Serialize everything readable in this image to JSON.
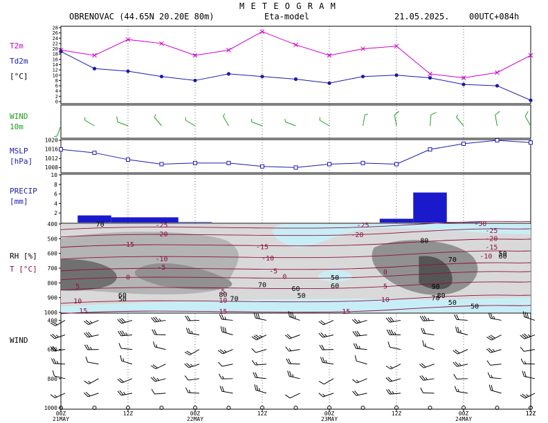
{
  "header": {
    "title": "M E T E O G R A M",
    "station": "OBRENOVAC (44.65N 20.20E  80m)",
    "model": "Eta-model",
    "date": "21.05.2025.",
    "run": "00UTC+084h"
  },
  "panel_labels": {
    "t2m": "T2m",
    "td2m": "Td2m",
    "temp_unit": "[°C]",
    "wind": "WIND",
    "wind_level": "10m",
    "mslp": "MSLP",
    "mslp_unit": "[hPa]",
    "precip": "PRECIP",
    "precip_unit": "[mm]",
    "rh": "RH [%]",
    "t": "T [°C]",
    "upper_wind": "WIND"
  },
  "colors": {
    "t2m": "#cc00cc",
    "td2m": "#1a1aaa",
    "wind10m": "#1aa01a",
    "mslp": "#1a1aaa",
    "precip": "#1a1acc",
    "t_isotherm": "#8b1040",
    "rh_band_1": "#c8eef5",
    "rh_band_2": "#d9d9d9",
    "rh_band_3": "#b4b4b4",
    "rh_band_4": "#919191",
    "rh_band_5": "#707070",
    "rh_band_6": "#555555"
  },
  "chart_data": {
    "type": "meteogram",
    "x": [
      "00Z",
      "06Z",
      "12Z",
      "18Z",
      "00Z",
      "06Z",
      "12Z",
      "18Z",
      "00Z",
      "06Z",
      "12Z",
      "18Z",
      "00Z",
      "06Z",
      "12Z"
    ],
    "hours": [
      0,
      6,
      12,
      18,
      24,
      30,
      36,
      42,
      48,
      54,
      60,
      66,
      72,
      78,
      84
    ],
    "x_ticks": [
      {
        "time": "00Z",
        "date": "21MAY"
      },
      {
        "time": "12Z",
        "date": ""
      },
      {
        "time": "00Z",
        "date": "22MAY"
      },
      {
        "time": "12Z",
        "date": ""
      },
      {
        "time": "00Z",
        "date": "23MAY"
      },
      {
        "time": "12Z",
        "date": ""
      },
      {
        "time": "00Z",
        "date": "24MAY"
      },
      {
        "time": "12Z",
        "date": ""
      }
    ],
    "temperature": {
      "ylim": [
        0,
        28
      ],
      "y_ticks": [
        "0",
        "2",
        "4",
        "6",
        "8",
        "10",
        "12",
        "14",
        "16",
        "18",
        "20",
        "22",
        "24",
        "26",
        "28"
      ],
      "series": [
        {
          "name": "T2m",
          "values": [
            19.5,
            17.5,
            23.5,
            22,
            17.5,
            19.5,
            26.5,
            21.5,
            17.5,
            20,
            21,
            10.5,
            9,
            11,
            17.5
          ]
        },
        {
          "name": "Td2m",
          "values": [
            19,
            12.5,
            11.5,
            9.5,
            8,
            10.5,
            9.5,
            8.5,
            7,
            9.5,
            10,
            9,
            6.5,
            6,
            0.5
          ]
        }
      ]
    },
    "wind10m": [
      {
        "dir": 200,
        "speed": 5
      },
      {
        "dir": 300,
        "speed": 5
      },
      {
        "dir": 290,
        "speed": 8
      },
      {
        "dir": 320,
        "speed": 5
      },
      {
        "dir": 300,
        "speed": 5
      },
      {
        "dir": 330,
        "speed": 5
      },
      {
        "dir": 290,
        "speed": 5
      },
      {
        "dir": 290,
        "speed": 5
      },
      {
        "dir": 300,
        "speed": 5
      },
      {
        "dir": 10,
        "speed": 5
      },
      {
        "dir": 350,
        "speed": 8
      },
      {
        "dir": 5,
        "speed": 8
      },
      {
        "dir": 320,
        "speed": 5
      },
      {
        "dir": 350,
        "speed": 10
      },
      {
        "dir": 330,
        "speed": 8
      }
    ],
    "mslp": {
      "ylim": [
        1006,
        1020
      ],
      "y_ticks": [
        "1008",
        "1012",
        "1016",
        "1020"
      ],
      "values": [
        1016,
        1014.5,
        1011.5,
        1009.5,
        1010,
        1010,
        1008.5,
        1008,
        1009.5,
        1010,
        1009.5,
        1016,
        1018.5,
        1020,
        1019
      ]
    },
    "precip": {
      "ylim": [
        0,
        10
      ],
      "y_ticks": [
        "2",
        "4",
        "6",
        "8",
        "10"
      ],
      "intervals": [
        {
          "from_hour": 3,
          "to_hour": 9,
          "value": 1.5
        },
        {
          "from_hour": 9,
          "to_hour": 21,
          "value": 1.1
        },
        {
          "from_hour": 21,
          "to_hour": 27,
          "value": 0.1
        },
        {
          "from_hour": 57,
          "to_hour": 63,
          "value": 0.8
        },
        {
          "from_hour": 63,
          "to_hour": 69,
          "value": 6.3
        },
        {
          "from_hour": 69,
          "to_hour": 75,
          "value": 0.1
        }
      ]
    },
    "cross_section": {
      "pressure_ticks": [
        "400",
        "500",
        "600",
        "700",
        "800",
        "900",
        "1000"
      ],
      "rh_labels": [
        {
          "text": "70",
          "hour": 7,
          "p": 405
        },
        {
          "text": "80",
          "hour": 65,
          "p": 515
        },
        {
          "text": "70",
          "hour": 70,
          "p": 643
        },
        {
          "text": "50",
          "hour": 79,
          "p": 603
        },
        {
          "text": "60",
          "hour": 79,
          "p": 621
        },
        {
          "text": "70",
          "hour": 36,
          "p": 815
        },
        {
          "text": "60",
          "hour": 42,
          "p": 840
        },
        {
          "text": "50",
          "hour": 49,
          "p": 765
        },
        {
          "text": "60",
          "hour": 49,
          "p": 822
        },
        {
          "text": "50",
          "hour": 43,
          "p": 888
        },
        {
          "text": "90",
          "hour": 67,
          "p": 827
        },
        {
          "text": "80",
          "hour": 68,
          "p": 888
        },
        {
          "text": "70",
          "hour": 67,
          "p": 905
        },
        {
          "text": "60",
          "hour": 11,
          "p": 885
        },
        {
          "text": "50",
          "hour": 11,
          "p": 911
        },
        {
          "text": "80",
          "hour": 29,
          "p": 880
        },
        {
          "text": "70",
          "hour": 31,
          "p": 908
        },
        {
          "text": "50",
          "hour": 70,
          "p": 935
        },
        {
          "text": "50",
          "hour": 74,
          "p": 960
        }
      ],
      "t_labels": [
        {
          "text": "-25",
          "hour": 18,
          "p": 410
        },
        {
          "text": "-20",
          "hour": 18,
          "p": 470
        },
        {
          "text": "-15",
          "hour": 12,
          "p": 540
        },
        {
          "text": "-10",
          "hour": 18,
          "p": 640
        },
        {
          "text": "-5",
          "hour": 18,
          "p": 695
        },
        {
          "text": "0",
          "hour": 12,
          "p": 763
        },
        {
          "text": "5",
          "hour": 3,
          "p": 825
        },
        {
          "text": "10",
          "hour": 3,
          "p": 925
        },
        {
          "text": "15",
          "hour": 4,
          "p": 990
        },
        {
          "text": "-15",
          "hour": 36,
          "p": 558
        },
        {
          "text": "-10",
          "hour": 37,
          "p": 635
        },
        {
          "text": "-5",
          "hour": 38,
          "p": 722
        },
        {
          "text": "0",
          "hour": 40,
          "p": 758
        },
        {
          "text": "5",
          "hour": 29,
          "p": 860
        },
        {
          "text": "10",
          "hour": 29,
          "p": 920
        },
        {
          "text": "15",
          "hour": 29,
          "p": 995
        },
        {
          "text": "15",
          "hour": 51,
          "p": 995
        },
        {
          "text": "-25",
          "hour": 54,
          "p": 410
        },
        {
          "text": "-20",
          "hour": 53,
          "p": 475
        },
        {
          "text": "0",
          "hour": 58,
          "p": 727
        },
        {
          "text": "5",
          "hour": 58,
          "p": 825
        },
        {
          "text": "10",
          "hour": 58,
          "p": 915
        },
        {
          "text": "-30",
          "hour": 75,
          "p": 400
        },
        {
          "text": "-25",
          "hour": 77,
          "p": 448
        },
        {
          "text": "-20",
          "hour": 77,
          "p": 500
        },
        {
          "text": "-15",
          "hour": 77,
          "p": 560
        },
        {
          "text": "-10",
          "hour": 76,
          "p": 620
        }
      ]
    },
    "upper_wind": {
      "levels": [
        400,
        500,
        600,
        700,
        800,
        900,
        1000
      ]
    }
  }
}
